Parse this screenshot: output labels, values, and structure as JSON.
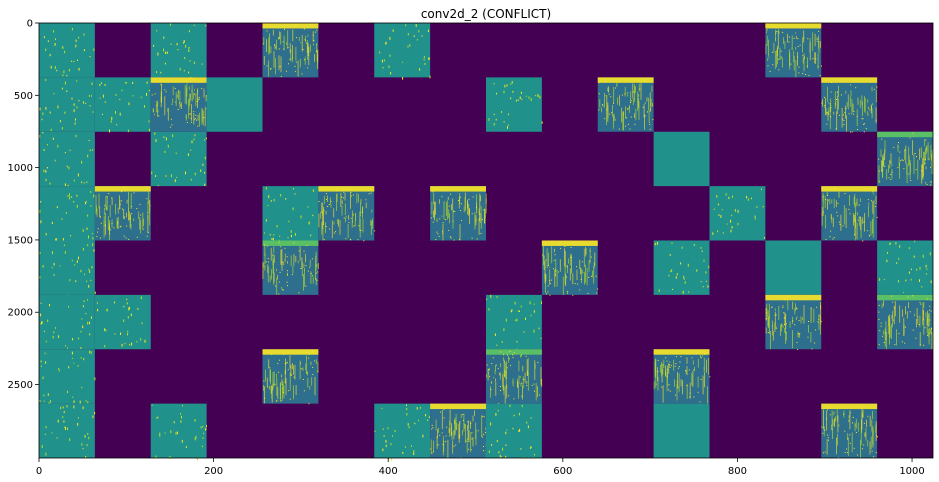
{
  "chart_data": {
    "type": "heatmap",
    "title": "conv2d_2 (CONFLICT)",
    "xlabel": "",
    "ylabel": "",
    "xlim": [
      0,
      1024
    ],
    "ylim": [
      3008,
      0
    ],
    "x_ticks": [
      0,
      200,
      400,
      600,
      800,
      1000
    ],
    "y_ticks": [
      0,
      500,
      1000,
      1500,
      2000,
      2500
    ],
    "x_tick_labels": [
      "0",
      "200",
      "400",
      "600",
      "800",
      "1000"
    ],
    "y_tick_labels": [
      "0",
      "500",
      "1000",
      "1500",
      "2000",
      "2500"
    ],
    "grid": false,
    "block_width": 64,
    "block_height": 376,
    "colors": {
      "background": "#440154",
      "block": "#21918c",
      "block_dense": "#2f6f8e",
      "highlight": "#bddf26",
      "highlight_bright": "#fde725",
      "highlight_green": "#5ec962"
    },
    "blocks": [
      {
        "col": 0,
        "row": 0,
        "pattern": "sparse"
      },
      {
        "col": 2,
        "row": 0,
        "pattern": "sparse"
      },
      {
        "col": 4,
        "row": 0,
        "pattern": "dense"
      },
      {
        "col": 6,
        "row": 0,
        "pattern": "sparse"
      },
      {
        "col": 13,
        "row": 0,
        "pattern": "dense"
      },
      {
        "col": 0,
        "row": 1,
        "pattern": "sparse"
      },
      {
        "col": 1,
        "row": 1,
        "pattern": "sparse"
      },
      {
        "col": 2,
        "row": 1,
        "pattern": "dense"
      },
      {
        "col": 3,
        "row": 1,
        "pattern": "none"
      },
      {
        "col": 8,
        "row": 1,
        "pattern": "sparse"
      },
      {
        "col": 10,
        "row": 1,
        "pattern": "dense"
      },
      {
        "col": 14,
        "row": 1,
        "pattern": "dense"
      },
      {
        "col": 0,
        "row": 2,
        "pattern": "sparse"
      },
      {
        "col": 2,
        "row": 2,
        "pattern": "sparse"
      },
      {
        "col": 11,
        "row": 2,
        "pattern": "none"
      },
      {
        "col": 15,
        "row": 2,
        "pattern": "dense"
      },
      {
        "col": 0,
        "row": 3,
        "pattern": "sparse"
      },
      {
        "col": 1,
        "row": 3,
        "pattern": "dense"
      },
      {
        "col": 4,
        "row": 3,
        "pattern": "sparse"
      },
      {
        "col": 5,
        "row": 3,
        "pattern": "dense"
      },
      {
        "col": 7,
        "row": 3,
        "pattern": "dense"
      },
      {
        "col": 12,
        "row": 3,
        "pattern": "sparse"
      },
      {
        "col": 14,
        "row": 3,
        "pattern": "dense"
      },
      {
        "col": 0,
        "row": 4,
        "pattern": "sparse"
      },
      {
        "col": 4,
        "row": 4,
        "pattern": "dense"
      },
      {
        "col": 9,
        "row": 4,
        "pattern": "dense"
      },
      {
        "col": 11,
        "row": 4,
        "pattern": "sparse"
      },
      {
        "col": 13,
        "row": 4,
        "pattern": "none"
      },
      {
        "col": 15,
        "row": 4,
        "pattern": "sparse"
      },
      {
        "col": 0,
        "row": 5,
        "pattern": "sparse"
      },
      {
        "col": 1,
        "row": 5,
        "pattern": "sparse"
      },
      {
        "col": 8,
        "row": 5,
        "pattern": "sparse"
      },
      {
        "col": 13,
        "row": 5,
        "pattern": "dense"
      },
      {
        "col": 15,
        "row": 5,
        "pattern": "dense"
      },
      {
        "col": 0,
        "row": 6,
        "pattern": "sparse"
      },
      {
        "col": 4,
        "row": 6,
        "pattern": "dense"
      },
      {
        "col": 8,
        "row": 6,
        "pattern": "dense"
      },
      {
        "col": 11,
        "row": 6,
        "pattern": "dense"
      },
      {
        "col": 0,
        "row": 7,
        "pattern": "sparse"
      },
      {
        "col": 2,
        "row": 7,
        "pattern": "sparse"
      },
      {
        "col": 6,
        "row": 7,
        "pattern": "sparse"
      },
      {
        "col": 7,
        "row": 7,
        "pattern": "dense"
      },
      {
        "col": 8,
        "row": 7,
        "pattern": "sparse"
      },
      {
        "col": 11,
        "row": 7,
        "pattern": "none"
      },
      {
        "col": 14,
        "row": 7,
        "pattern": "dense"
      }
    ]
  }
}
